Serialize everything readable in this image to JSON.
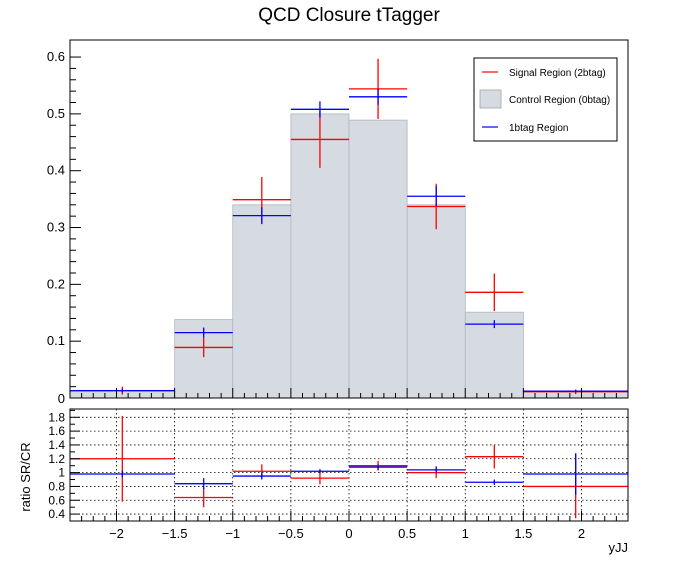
{
  "chart_data": [
    {
      "type": "histogram",
      "title": "QCD Closure tTagger",
      "xlim": [
        -2.4,
        2.4
      ],
      "ylim": [
        0,
        0.63
      ],
      "bins": [
        [
          -2.4,
          -1.5
        ],
        [
          -1.5,
          -1.0
        ],
        [
          -1.0,
          -0.5
        ],
        [
          -0.5,
          0.0
        ],
        [
          0.0,
          0.5
        ],
        [
          0.5,
          1.0
        ],
        [
          1.0,
          1.5
        ],
        [
          1.5,
          2.4
        ]
      ],
      "y_ticks": [
        "0.1",
        "0.2",
        "0.3",
        "0.4",
        "0.5",
        "0.6"
      ],
      "legend_position": "top-right",
      "series": [
        {
          "name": "Control Region (0btag)",
          "kind": "filled",
          "color": "#d5dbe0",
          "values": [
            0.012,
            0.138,
            0.34,
            0.5,
            0.489,
            0.34,
            0.151,
            0.012
          ]
        },
        {
          "name": "Signal Region (2btag)",
          "kind": "errorbar",
          "color": "#ff0000",
          "values": [
            0.013,
            0.089,
            0.349,
            0.455,
            0.544,
            0.337,
            0.186,
            0.011
          ],
          "errors": [
            0.007,
            0.017,
            0.04,
            0.05,
            0.053,
            0.04,
            0.033,
            0.004
          ]
        },
        {
          "name": "1btag Region",
          "kind": "errorbar",
          "color": "#0000ff",
          "values": [
            0.013,
            0.115,
            0.321,
            0.508,
            0.53,
            0.355,
            0.13,
            0.012
          ],
          "errors": [
            0.003,
            0.009,
            0.015,
            0.014,
            0.014,
            0.018,
            0.007,
            0.002
          ]
        }
      ]
    },
    {
      "type": "histogram",
      "xlabel": "yJJ",
      "ylabel": "ratio SR/CR",
      "xlim": [
        -2.4,
        2.4
      ],
      "ylim": [
        0.3,
        1.92
      ],
      "grid": true,
      "x_ticks": [
        "−2",
        "−1.5",
        "−1",
        "−0.5",
        "0",
        "0.5",
        "1",
        "1.5",
        "2"
      ],
      "y_ticks": [
        "0.4",
        "0.6",
        "0.8",
        "1",
        "1.2",
        "1.4",
        "1.6",
        "1.8"
      ],
      "bins": [
        [
          -2.4,
          -1.5
        ],
        [
          -1.5,
          -1.0
        ],
        [
          -1.0,
          -0.5
        ],
        [
          -0.5,
          0.0
        ],
        [
          0.0,
          0.5
        ],
        [
          0.5,
          1.0
        ],
        [
          1.0,
          1.5
        ],
        [
          1.5,
          2.4
        ]
      ],
      "series": [
        {
          "name": "Signal Region (2btag)",
          "kind": "errorbar",
          "color": "#ff0000",
          "values": [
            1.2,
            0.64,
            1.02,
            0.92,
            1.1,
            1.0,
            1.23,
            0.8
          ],
          "errors": [
            0.62,
            0.14,
            0.1,
            0.09,
            0.07,
            0.08,
            0.17,
            0.46
          ]
        },
        {
          "name": "1btag Region",
          "kind": "errorbar",
          "color": "#0000ff",
          "values": [
            0.98,
            0.84,
            0.95,
            1.02,
            1.08,
            1.04,
            0.86,
            0.98
          ],
          "errors": [
            0.05,
            0.08,
            0.05,
            0.03,
            0.04,
            0.05,
            0.04,
            0.3
          ]
        }
      ]
    }
  ]
}
